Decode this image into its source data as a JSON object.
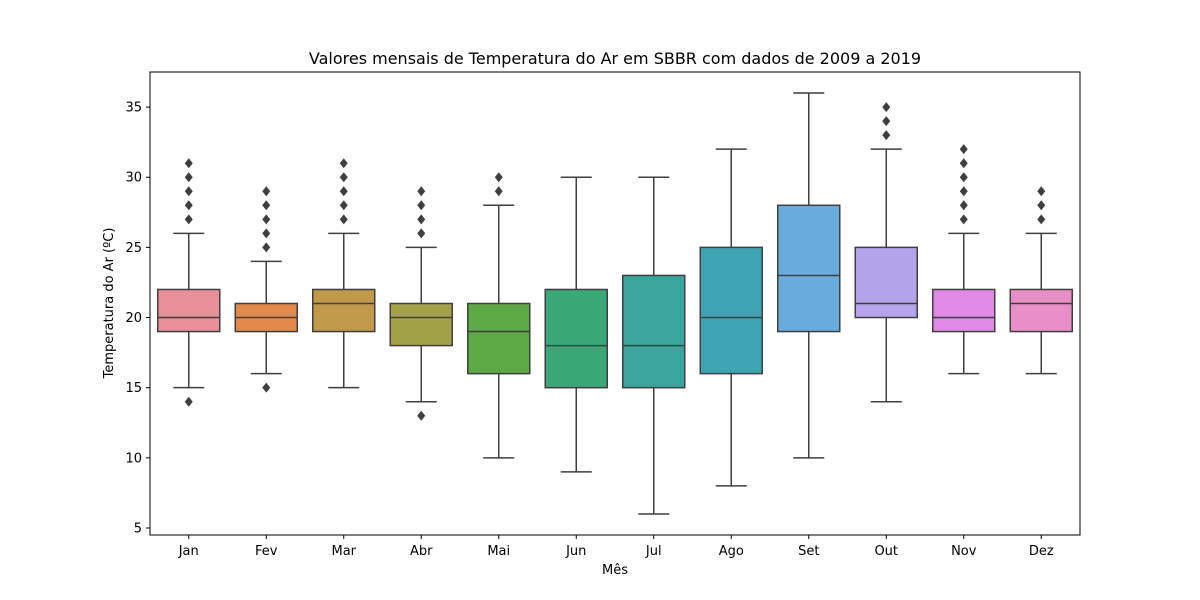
{
  "chart_data": {
    "type": "box",
    "title": "Valores mensais de Temperatura do Ar em SBBR com dados de 2009 a 2019",
    "xlabel": "Mês",
    "ylabel": "Temperatura do Ar (ºC)",
    "ylim": [
      4.5,
      37.5
    ],
    "yticks": [
      5,
      10,
      15,
      20,
      25,
      30,
      35
    ],
    "categories": [
      "Jan",
      "Fev",
      "Mar",
      "Abr",
      "Mai",
      "Jun",
      "Jul",
      "Ago",
      "Set",
      "Out",
      "Nov",
      "Dez"
    ],
    "boxes": [
      {
        "month": "Jan",
        "whisker_low": 15,
        "q1": 19,
        "median": 20,
        "q3": 22,
        "whisker_high": 26,
        "outliers": [
          14,
          27,
          28,
          29,
          30,
          31
        ],
        "color": "#e8909a"
      },
      {
        "month": "Fev",
        "whisker_low": 16,
        "q1": 19,
        "median": 20,
        "q3": 21,
        "whisker_high": 24,
        "outliers": [
          15,
          25,
          26,
          27,
          28,
          29
        ],
        "color": "#e38a4b"
      },
      {
        "month": "Mar",
        "whisker_low": 15,
        "q1": 19,
        "median": 21,
        "q3": 22,
        "whisker_high": 26,
        "outliers": [
          27,
          28,
          29,
          30,
          31
        ],
        "color": "#c0994b"
      },
      {
        "month": "Abr",
        "whisker_low": 14,
        "q1": 18,
        "median": 20,
        "q3": 21,
        "whisker_high": 25,
        "outliers": [
          13,
          26,
          27,
          28,
          29
        ],
        "color": "#a2a348"
      },
      {
        "month": "Mai",
        "whisker_low": 10,
        "q1": 16,
        "median": 19,
        "q3": 21,
        "whisker_high": 28,
        "outliers": [
          29,
          30
        ],
        "color": "#5ca945"
      },
      {
        "month": "Jun",
        "whisker_low": 9,
        "q1": 15,
        "median": 18,
        "q3": 22,
        "whisker_high": 30,
        "outliers": [],
        "color": "#3aa877"
      },
      {
        "month": "Jul",
        "whisker_low": 6,
        "q1": 15,
        "median": 18,
        "q3": 23,
        "whisker_high": 30,
        "outliers": [],
        "color": "#3aa59c"
      },
      {
        "month": "Ago",
        "whisker_low": 8,
        "q1": 16,
        "median": 20,
        "q3": 25,
        "whisker_high": 32,
        "outliers": [],
        "color": "#3ea3b3"
      },
      {
        "month": "Set",
        "whisker_low": 10,
        "q1": 19,
        "median": 23,
        "q3": 28,
        "whisker_high": 36,
        "outliers": [],
        "color": "#6aabde"
      },
      {
        "month": "Out",
        "whisker_low": 14,
        "q1": 20,
        "median": 21,
        "q3": 25,
        "whisker_high": 32,
        "outliers": [
          33,
          34,
          35
        ],
        "color": "#b3a3ea"
      },
      {
        "month": "Nov",
        "whisker_low": 16,
        "q1": 19,
        "median": 20,
        "q3": 22,
        "whisker_high": 26,
        "outliers": [
          27,
          28,
          29,
          30,
          31,
          32
        ],
        "color": "#e08ae6"
      },
      {
        "month": "Dez",
        "whisker_low": 16,
        "q1": 19,
        "median": 21,
        "q3": 22,
        "whisker_high": 26,
        "outliers": [
          27,
          28,
          29
        ],
        "color": "#e78fc6"
      }
    ],
    "line_color": "#3f3f3f",
    "grid": false,
    "legend": "none"
  }
}
